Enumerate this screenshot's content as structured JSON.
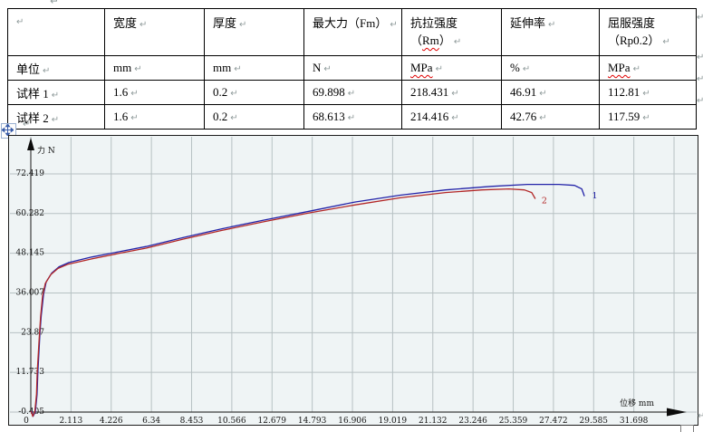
{
  "marks": {
    "pilcrow": "↵"
  },
  "icons": {
    "move_handle_icon": "four-way-move-arrows"
  },
  "colors": {
    "spellcheck_underline": "#e00000",
    "chart_background": "#eff4f5",
    "gridline": "#b7c1c3",
    "curve1": "#2323a8",
    "curve2": "#b22727"
  },
  "table": {
    "headers": {
      "c0": "",
      "c1": "宽度",
      "c2": "厚度",
      "c3": "最大力（Fm）",
      "c4_line1": "抗拉强度",
      "c4_open": "（",
      "c4_code": "Rm",
      "c4_close": "）",
      "c5": "延伸率",
      "c6_line1": "屈服强度",
      "c6_line2": "（Rp0.2）"
    },
    "rows": [
      {
        "label": "单位",
        "c1": "mm",
        "c2": "mm",
        "c3": "N",
        "c4": "MPa",
        "c5": "%",
        "c6": "MPa"
      },
      {
        "label": "试样 1",
        "c1": "1.6",
        "c2": "0.2",
        "c3": "69.898",
        "c4": "218.431",
        "c5": "46.91",
        "c6": "112.81"
      },
      {
        "label": "试样 2",
        "c1": "1.6",
        "c2": "0.2",
        "c3": "68.613",
        "c4": "214.416",
        "c5": "42.76",
        "c6": "117.59"
      }
    ]
  },
  "chart_data": {
    "type": "line",
    "title": "",
    "xlabel": "位移 mm",
    "ylabel": "力 N",
    "xlim": [
      0,
      35.2
    ],
    "ylim": [
      -0.405,
      84.5
    ],
    "grid": true,
    "legend_position": "none",
    "x_ticks": [
      0,
      2.113,
      4.226,
      6.34,
      8.453,
      10.566,
      12.679,
      14.793,
      16.906,
      19.019,
      21.132,
      23.246,
      25.359,
      27.472,
      29.585,
      31.698
    ],
    "extra_x_gridlines": [
      33.811
    ],
    "y_ticks": [
      72.419,
      60.282,
      48.145,
      36.007,
      23.87,
      11.733,
      -0.405
    ],
    "series": [
      {
        "name": "1",
        "color": "#2323a8",
        "points": [
          [
            0.05,
            -0.1
          ],
          [
            0.12,
            -1.7
          ],
          [
            0.24,
            -0.4
          ],
          [
            0.33,
            5.0
          ],
          [
            0.37,
            11.8
          ],
          [
            0.43,
            18.0
          ],
          [
            0.48,
            23.7
          ],
          [
            0.55,
            29.0
          ],
          [
            0.67,
            35.6
          ],
          [
            0.81,
            39.4
          ],
          [
            1.1,
            42.1
          ],
          [
            1.48,
            44.0
          ],
          [
            2.0,
            45.3
          ],
          [
            3.2,
            47.0
          ],
          [
            4.63,
            48.6
          ],
          [
            6.06,
            50.2
          ],
          [
            7.97,
            52.9
          ],
          [
            10.02,
            55.6
          ],
          [
            12.26,
            58.3
          ],
          [
            14.65,
            61.0
          ],
          [
            17.03,
            63.8
          ],
          [
            19.42,
            65.9
          ],
          [
            21.8,
            67.5
          ],
          [
            24.19,
            68.6
          ],
          [
            26.1,
            69.2
          ],
          [
            27.76,
            69.2
          ],
          [
            28.58,
            68.9
          ],
          [
            28.96,
            67.8
          ],
          [
            29.1,
            65.6
          ]
        ]
      },
      {
        "name": "2",
        "color": "#b22727",
        "points": [
          [
            0.02,
            -0.1
          ],
          [
            0.1,
            -1.7
          ],
          [
            0.21,
            -0.4
          ],
          [
            0.3,
            5.0
          ],
          [
            0.34,
            11.8
          ],
          [
            0.4,
            18.0
          ],
          [
            0.45,
            23.1
          ],
          [
            0.52,
            29.0
          ],
          [
            0.62,
            35.1
          ],
          [
            0.76,
            38.9
          ],
          [
            1.05,
            41.6
          ],
          [
            1.43,
            43.5
          ],
          [
            1.96,
            44.8
          ],
          [
            3.2,
            46.4
          ],
          [
            4.63,
            48.1
          ],
          [
            6.06,
            49.7
          ],
          [
            7.97,
            52.4
          ],
          [
            10.02,
            55.1
          ],
          [
            12.26,
            57.8
          ],
          [
            14.65,
            60.5
          ],
          [
            17.03,
            62.9
          ],
          [
            19.42,
            65.1
          ],
          [
            21.8,
            66.7
          ],
          [
            23.71,
            67.5
          ],
          [
            25.14,
            67.8
          ],
          [
            25.95,
            67.5
          ],
          [
            26.33,
            66.7
          ],
          [
            26.52,
            64.8
          ]
        ]
      }
    ],
    "series_labels": [
      {
        "text": "1",
        "x": 29.5,
        "y": 64.9,
        "color": "#2323a8"
      },
      {
        "text": "2",
        "x": 26.85,
        "y": 63.4,
        "color": "#b22727"
      }
    ]
  }
}
